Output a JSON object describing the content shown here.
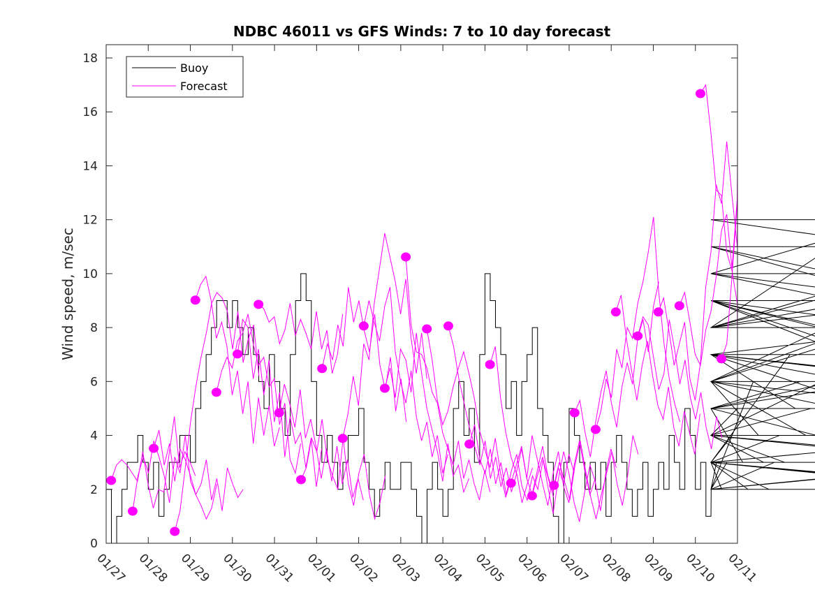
{
  "chart_data": {
    "type": "line",
    "title": "NDBC 46011 vs GFS Winds: 7 to 10 day forecast",
    "xlabel": "",
    "ylabel": "Wind speed, m/sec",
    "x_unit": "days since 01/27",
    "xlim": [
      0,
      15
    ],
    "ylim": [
      0,
      18.5
    ],
    "x_ticks": [
      0,
      1,
      2,
      3,
      4,
      5,
      6,
      7,
      8,
      9,
      10,
      11,
      12,
      13,
      14,
      15
    ],
    "x_tick_labels": [
      "01/27",
      "01/28",
      "01/29",
      "01/30",
      "01/31",
      "02/01",
      "02/02",
      "02/03",
      "02/04",
      "02/05",
      "02/06",
      "02/07",
      "02/08",
      "02/09",
      "02/10",
      "02/11"
    ],
    "y_ticks": [
      0,
      2,
      4,
      6,
      8,
      10,
      12,
      14,
      16,
      18
    ],
    "y_tick_labels": [
      "0",
      "2",
      "4",
      "6",
      "8",
      "10",
      "12",
      "14",
      "16",
      "18"
    ],
    "grid": false,
    "legend": {
      "placement": "top-left",
      "entries": [
        {
          "label": "Buoy",
          "color": "#000000"
        },
        {
          "label": "Forecast",
          "color": "#ff00ff"
        }
      ]
    },
    "colors": {
      "buoy": "#000000",
      "forecast": "#ff00ff",
      "axes": "#262626"
    },
    "buoy": {
      "name": "Buoy",
      "step_days": 0.125,
      "values": [
        2,
        0,
        1,
        2,
        3,
        3,
        4,
        3,
        2,
        3,
        1,
        2,
        3,
        3,
        4,
        4,
        3,
        5,
        6,
        7,
        8,
        9,
        9,
        8,
        9,
        8,
        7,
        8,
        7,
        6,
        5,
        7,
        6,
        5,
        4,
        7,
        9,
        10,
        9,
        6,
        4,
        3,
        4,
        3,
        2,
        3,
        4,
        4,
        5,
        3,
        2,
        1,
        2,
        3,
        2,
        2,
        3,
        3,
        2,
        1,
        0,
        2,
        3,
        2,
        1,
        2,
        5,
        6,
        4,
        5,
        3,
        7,
        10,
        9,
        8,
        7,
        5,
        6,
        4,
        6,
        7,
        8,
        5,
        4,
        3,
        1,
        0,
        3,
        5,
        4,
        3,
        2,
        3,
        2,
        3,
        1,
        3,
        4,
        3,
        2,
        1,
        2,
        3,
        1,
        2,
        3,
        2,
        4,
        3,
        2,
        5,
        4,
        2,
        3,
        1,
        2,
        3,
        2,
        3,
        4,
        5,
        3,
        2,
        6,
        4,
        3,
        2,
        3,
        4,
        3,
        7,
        5,
        6,
        4,
        5,
        4,
        6,
        8,
        11,
        10,
        9,
        7,
        6,
        8,
        9,
        7,
        5,
        6,
        8,
        10,
        12,
        11,
        9,
        8,
        10,
        9,
        7,
        8,
        9,
        7,
        6,
        5,
        7,
        6,
        4,
        3,
        2,
        3,
        2,
        3,
        4,
        3,
        2
      ],
      "end_day": 14.37
    },
    "forecast": {
      "name": "Forecast",
      "step_days": 0.125,
      "traces": [
        {
          "start": 0.12,
          "values": [
            2.33,
            2.9,
            3.1,
            2.9,
            2.6,
            2.3,
            3.4,
            2.2,
            1.3,
            2.0,
            1.9,
            3.3,
            4.7,
            2.8,
            3.4,
            3.0,
            2.5
          ]
        },
        {
          "start": 0.63,
          "values": [
            1.19,
            2.5,
            3.2,
            2.6,
            3.8,
            3.2,
            2.5,
            1.5,
            3.2,
            2.6,
            4.0,
            2.3,
            1.8,
            1.4,
            0.9,
            1.3,
            2.2
          ]
        },
        {
          "start": 1.13,
          "values": [
            3.52,
            4.2,
            2.9,
            3.7,
            2.3,
            3.5,
            3.1,
            2.5,
            1.8,
            2.2,
            3.1,
            1.6,
            2.4,
            1.2,
            2.8,
            2.2,
            1.7,
            2.0
          ]
        },
        {
          "start": 1.63,
          "values": [
            0.44,
            1.2,
            2.8,
            4.5,
            5.8,
            6.9,
            7.8,
            8.9,
            9.3,
            9.1,
            8.6,
            7.2,
            8.6,
            6.7,
            7.6,
            8.1,
            6.2
          ]
        },
        {
          "start": 2.12,
          "values": [
            9.02,
            9.6,
            9.9,
            9.0,
            7.6,
            8.2,
            7.3,
            5.5,
            6.4,
            4.8,
            6.0,
            3.7,
            5.4,
            4.0,
            5.1,
            3.6,
            4.3
          ]
        },
        {
          "start": 2.62,
          "values": [
            5.6,
            6.4,
            6.9,
            6.5,
            7.5,
            7.8,
            8.5,
            7.4,
            6.6,
            6.9,
            5.8,
            6.1,
            4.4,
            5.2,
            3.1,
            2.6,
            3.7
          ]
        },
        {
          "start": 3.12,
          "values": [
            7.02,
            8.3,
            8.0,
            6.1,
            7.2,
            5.5,
            6.8,
            4.5,
            5.6,
            3.2,
            4.7,
            3.7,
            4.1,
            2.8,
            3.9,
            2.1,
            3.5
          ]
        },
        {
          "start": 3.62,
          "values": [
            8.86,
            8.7,
            8.2,
            8.4,
            7.4,
            7.9,
            8.9,
            7.7,
            8.3,
            7.8,
            7.2,
            8.6,
            7.2,
            7.9,
            6.3,
            7.0,
            8.5
          ]
        },
        {
          "start": 4.11,
          "values": [
            4.84,
            5.9,
            5.2,
            4.3,
            5.7,
            3.9,
            4.6,
            3.6,
            2.4,
            3.5,
            2.3,
            3.6,
            2.2,
            3.1,
            1.7,
            2.4,
            1.6
          ]
        },
        {
          "start": 4.63,
          "values": [
            2.36,
            2.8,
            3.9,
            3.4,
            4.6,
            3.1,
            2.5,
            2.0,
            3.9,
            2.2,
            1.4,
            2.6,
            3.3,
            1.8,
            0.9,
            1.5,
            2.5
          ]
        },
        {
          "start": 5.13,
          "values": [
            6.48,
            7.4,
            6.8,
            8.1,
            7.3,
            9.5,
            8.2,
            9.0,
            7.9,
            7.1,
            8.5,
            6.6,
            5.7,
            6.9,
            4.9,
            6.1,
            4.5
          ]
        },
        {
          "start": 5.62,
          "values": [
            3.89,
            4.8,
            6.2,
            5.1,
            7.4,
            6.8,
            8.9,
            10.2,
            11.5,
            10.6,
            9.7,
            8.5,
            9.8,
            7.6,
            6.3,
            7.8,
            6.1
          ]
        },
        {
          "start": 6.12,
          "values": [
            8.06,
            9.0,
            8.2,
            7.5,
            8.8,
            9.5,
            7.1,
            6.0,
            5.2,
            6.4,
            4.7,
            3.8,
            4.5,
            3.2,
            4.0,
            2.6,
            3.3
          ]
        },
        {
          "start": 6.62,
          "values": [
            5.75,
            6.5,
            5.4,
            7.2,
            6.8,
            5.6,
            7.8,
            6.3,
            5.0,
            4.2,
            3.4,
            2.3,
            3.7,
            2.5,
            2.9,
            1.9,
            2.4
          ]
        },
        {
          "start": 7.12,
          "values": [
            10.62,
            8.1,
            7.1,
            7.0,
            6.5,
            5.6,
            5.2,
            4.1,
            3.5,
            2.9,
            3.8,
            2.4,
            3.1,
            2.2,
            1.6,
            2.7,
            1.9
          ]
        },
        {
          "start": 7.62,
          "values": [
            7.95,
            6.8,
            5.3,
            4.4,
            4.9,
            5.8,
            6.5,
            7.1,
            6.3,
            5.4,
            4.2,
            3.5,
            2.8,
            3.9,
            2.6,
            1.7,
            2.4
          ]
        },
        {
          "start": 8.13,
          "values": [
            8.06,
            7.3,
            6.1,
            5.2,
            4.3,
            3.6,
            2.9,
            3.8,
            2.4,
            3.2,
            2.1,
            2.8,
            1.9,
            2.6,
            1.5,
            2.2,
            2.8
          ]
        },
        {
          "start": 8.63,
          "values": [
            3.68,
            4.4,
            3.1,
            2.6,
            3.5,
            2.2,
            3.0,
            1.8,
            2.7,
            3.3,
            2.1,
            1.6,
            2.5,
            2.0,
            3.1,
            2.4,
            1.7
          ]
        },
        {
          "start": 9.12,
          "values": [
            6.63,
            7.3,
            5.4,
            4.1,
            3.2,
            2.6,
            3.5,
            2.4,
            1.8,
            2.7,
            3.6,
            2.5,
            1.9,
            2.8,
            2.2,
            3.3,
            2.6
          ]
        },
        {
          "start": 9.62,
          "values": [
            2.23,
            2.9,
            3.6,
            2.4,
            4.0,
            3.1,
            2.2,
            1.4,
            2.6,
            3.4,
            2.1,
            1.5,
            2.9,
            3.8,
            2.7,
            1.8,
            2.4
          ]
        },
        {
          "start": 10.12,
          "values": [
            1.76,
            2.5,
            3.2,
            2.1,
            1.1,
            2.4,
            3.4,
            2.6,
            1.5,
            0.8,
            1.9,
            2.9,
            2.3,
            1.2,
            2.6,
            3.5,
            2.8
          ]
        },
        {
          "start": 10.64,
          "values": [
            2.15,
            3.0,
            2.3,
            1.6,
            2.9,
            3.8,
            2.7,
            1.7,
            0.9,
            1.8,
            2.6,
            3.4,
            2.2,
            1.4,
            2.5,
            4.0,
            3.3
          ]
        },
        {
          "start": 11.13,
          "values": [
            4.84,
            5.3,
            4.1,
            3.2,
            4.5,
            5.6,
            6.4,
            5.2,
            4.3,
            5.8,
            6.7,
            5.9,
            7.6,
            8.3,
            7.1,
            8.8,
            9.7
          ]
        },
        {
          "start": 11.63,
          "values": [
            4.22,
            4.9,
            6.1,
            5.4,
            7.2,
            6.5,
            8.0,
            7.6,
            8.9,
            9.7,
            10.8,
            12.1,
            9.3,
            7.4,
            6.1,
            5.2,
            4.5
          ]
        },
        {
          "start": 12.11,
          "values": [
            8.58,
            9.2,
            7.6,
            6.4,
            5.3,
            6.6,
            7.5,
            6.2,
            5.1,
            4.6,
            5.8,
            4.3,
            3.6,
            4.9,
            4.1,
            3.3,
            4.8
          ]
        },
        {
          "start": 12.63,
          "values": [
            7.69,
            8.4,
            8.1,
            6.9,
            5.7,
            6.3,
            8.3,
            7.2,
            5.9,
            6.8,
            5.4,
            4.6,
            5.6,
            4.3,
            3.5,
            4.7,
            3.9
          ]
        },
        {
          "start": 13.12,
          "values": [
            8.58,
            9.1,
            7.9,
            6.6,
            7.4,
            8.2,
            6.1,
            5.3,
            6.7,
            9.5,
            10.8,
            13.3,
            12.6,
            14.9,
            12.9,
            11.0,
            12.7
          ]
        },
        {
          "start": 13.62,
          "values": [
            8.81,
            9.3,
            8.2,
            7.0,
            6.6,
            7.9,
            8.6,
            9.9,
            11.6,
            12.2,
            10.2,
            12.8,
            13.5,
            12.4,
            11.7,
            10.3,
            9.2
          ]
        },
        {
          "start": 14.12,
          "values": [
            16.68,
            17.0,
            15.2,
            13.1,
            12.9,
            10.8,
            10.1,
            8.9,
            7.6,
            6.9,
            5.2,
            4.1,
            2.2,
            1.7,
            2.9,
            4.4,
            5.5
          ]
        },
        {
          "start": 14.62,
          "values": [
            6.84,
            7.4,
            9.9,
            12.6,
            14.4,
            16.1,
            15.6,
            15.4
          ]
        }
      ]
    }
  }
}
